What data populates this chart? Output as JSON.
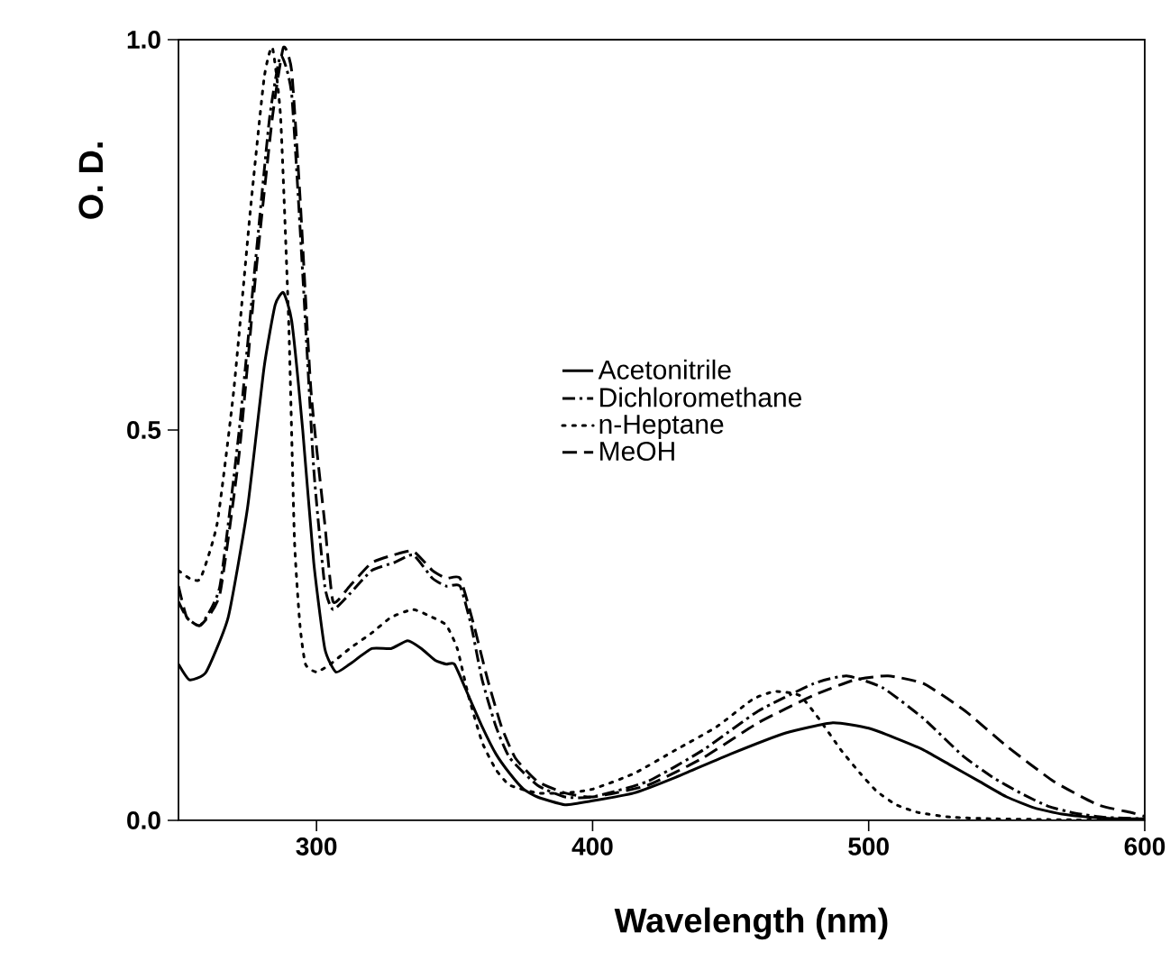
{
  "chart_data": {
    "type": "line",
    "xlabel": "Wavelength (nm)",
    "ylabel": "O. D.",
    "xlim": [
      250,
      600
    ],
    "ylim": [
      0,
      1
    ],
    "xticks": [
      300,
      400,
      500,
      600
    ],
    "yticks": [
      {
        "value": 0,
        "label": "0.0"
      },
      {
        "value": 0.5,
        "label": "0.5"
      },
      {
        "value": 1,
        "label": "1.0"
      }
    ],
    "legend": "right",
    "grid": false,
    "marker": "none",
    "series": [
      {
        "name": "Acetonitrile",
        "color": "#000000",
        "line_style": "solid",
        "x": [
          250,
          254,
          260,
          268,
          275,
          281,
          285,
          288,
          291,
          295,
          299,
          303,
          307,
          312,
          320,
          327,
          333,
          338,
          343,
          347,
          350,
          355,
          360,
          365,
          370,
          375,
          380,
          390,
          400,
          415,
          430,
          450,
          470,
          487,
          500,
          510,
          520,
          530,
          540,
          550,
          560,
          570,
          580,
          590,
          600
        ],
        "values": [
          0.2,
          0.18,
          0.19,
          0.26,
          0.4,
          0.58,
          0.66,
          0.676,
          0.64,
          0.5,
          0.33,
          0.22,
          0.19,
          0.2,
          0.22,
          0.22,
          0.23,
          0.22,
          0.205,
          0.2,
          0.2,
          0.16,
          0.12,
          0.085,
          0.06,
          0.04,
          0.03,
          0.02,
          0.025,
          0.035,
          0.055,
          0.085,
          0.112,
          0.125,
          0.118,
          0.105,
          0.09,
          0.07,
          0.05,
          0.03,
          0.016,
          0.008,
          0.004,
          0.002,
          0.002
        ]
      },
      {
        "name": "Dichloromethane",
        "color": "#000000",
        "line_style": "dashdot",
        "x": [
          250,
          253,
          258,
          265,
          272,
          278,
          283,
          287,
          291,
          295,
          299,
          303,
          306,
          312,
          320,
          328,
          335,
          342,
          347,
          352,
          356,
          360,
          365,
          370,
          380,
          390,
          400,
          420,
          440,
          460,
          480,
          492,
          505,
          520,
          534,
          545,
          555,
          565,
          575,
          585,
          600
        ],
        "values": [
          0.28,
          0.26,
          0.25,
          0.3,
          0.5,
          0.72,
          0.9,
          0.98,
          0.93,
          0.7,
          0.45,
          0.3,
          0.27,
          0.29,
          0.32,
          0.33,
          0.34,
          0.31,
          0.3,
          0.3,
          0.25,
          0.18,
          0.12,
          0.08,
          0.045,
          0.03,
          0.03,
          0.05,
          0.09,
          0.14,
          0.175,
          0.185,
          0.17,
          0.13,
          0.083,
          0.055,
          0.035,
          0.018,
          0.009,
          0.004,
          0.002
        ]
      },
      {
        "name": "n-Heptane",
        "color": "#000000",
        "line_style": "dotted",
        "x": [
          250,
          254,
          258,
          264,
          270,
          276,
          281,
          284,
          287,
          290,
          292,
          294,
          296,
          300,
          305,
          312,
          320,
          327,
          335,
          342,
          347,
          351,
          355,
          360,
          365,
          370,
          380,
          390,
          400,
          415,
          430,
          445,
          458,
          466,
          475,
          482,
          490,
          497,
          503,
          510,
          518,
          530,
          545,
          565,
          600
        ],
        "values": [
          0.32,
          0.31,
          0.31,
          0.38,
          0.55,
          0.78,
          0.95,
          0.99,
          0.9,
          0.63,
          0.36,
          0.25,
          0.2,
          0.19,
          0.2,
          0.22,
          0.24,
          0.26,
          0.27,
          0.26,
          0.25,
          0.22,
          0.16,
          0.1,
          0.065,
          0.045,
          0.035,
          0.035,
          0.04,
          0.06,
          0.09,
          0.12,
          0.155,
          0.165,
          0.16,
          0.13,
          0.09,
          0.06,
          0.037,
          0.02,
          0.01,
          0.004,
          0.002,
          0.001,
          0.0
        ]
      },
      {
        "name": "MeOH",
        "color": "#000000",
        "line_style": "dashed",
        "x": [
          250,
          253,
          258,
          265,
          272,
          278,
          284,
          288,
          291,
          294,
          298,
          303,
          306,
          312,
          320,
          328,
          335,
          342,
          347,
          352,
          357,
          362,
          367,
          372,
          380,
          390,
          400,
          420,
          440,
          460,
          480,
          495,
          507,
          520,
          535,
          550,
          567,
          583,
          595,
          600
        ],
        "values": [
          0.3,
          0.26,
          0.25,
          0.29,
          0.47,
          0.7,
          0.9,
          0.99,
          0.96,
          0.8,
          0.55,
          0.38,
          0.28,
          0.3,
          0.33,
          0.34,
          0.345,
          0.32,
          0.31,
          0.31,
          0.25,
          0.18,
          0.12,
          0.08,
          0.05,
          0.035,
          0.03,
          0.045,
          0.08,
          0.125,
          0.16,
          0.18,
          0.185,
          0.175,
          0.14,
          0.095,
          0.05,
          0.02,
          0.01,
          0.005
        ]
      }
    ]
  }
}
